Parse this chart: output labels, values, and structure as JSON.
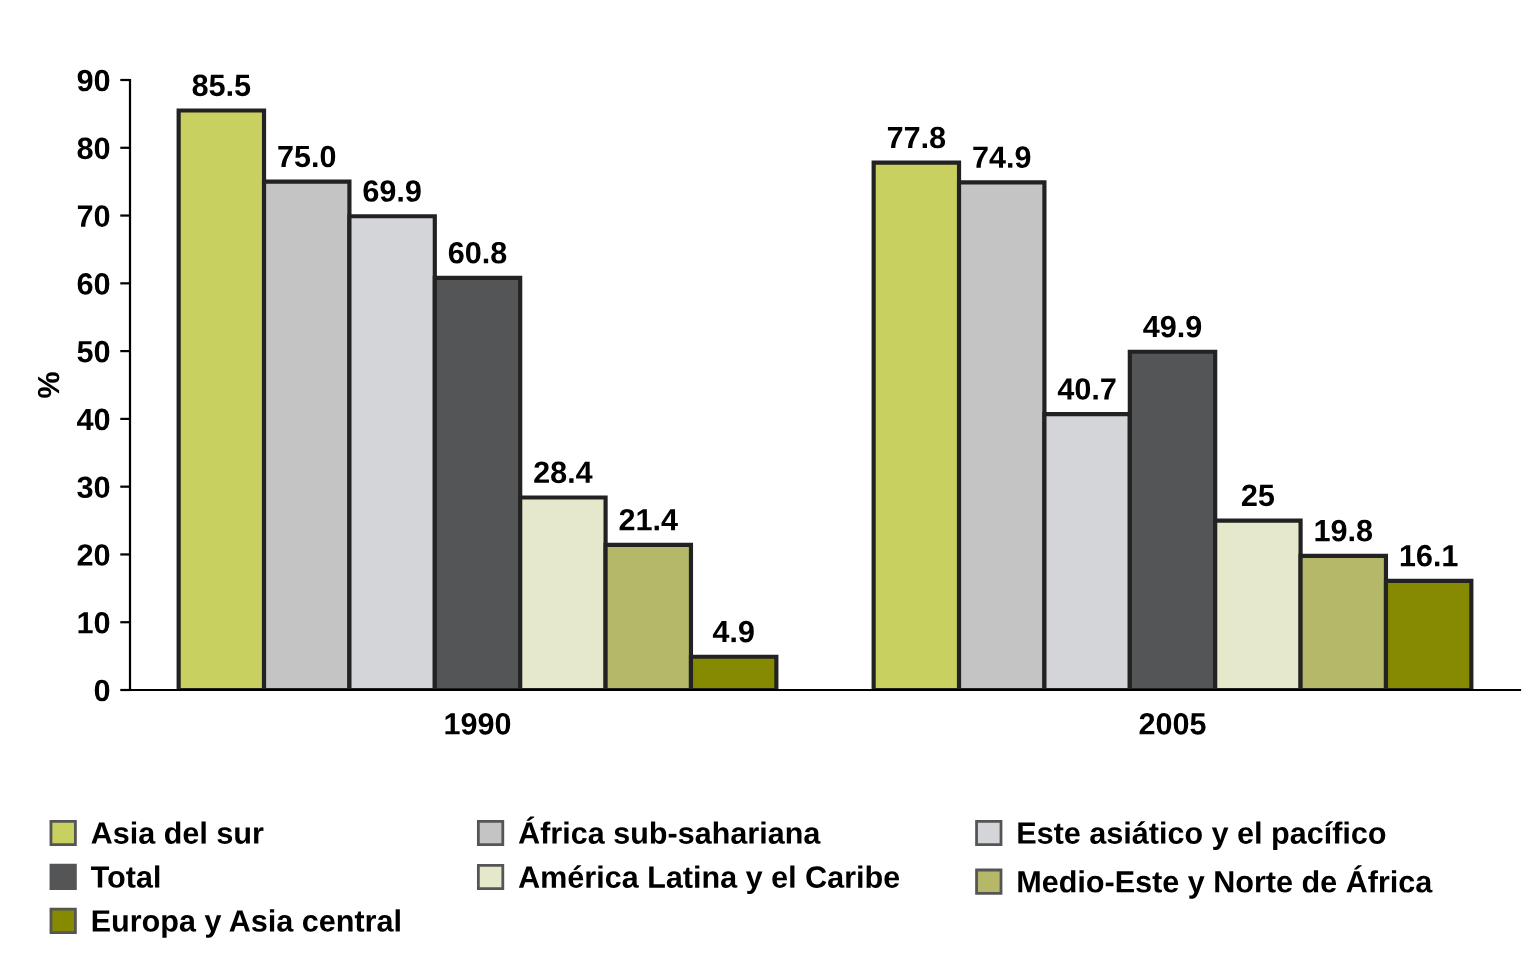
{
  "chart_data": {
    "type": "bar",
    "ylabel": "%",
    "categories": [
      "1990",
      "2005"
    ],
    "series": [
      {
        "name": "Asia del sur",
        "color": "#c8d060",
        "values": [
          85.5,
          77.8
        ],
        "value_labels": [
          "85.5",
          "77.8"
        ]
      },
      {
        "name": "África sub-sahariana",
        "color": "#c4c4c4",
        "values": [
          75.0,
          74.9
        ],
        "value_labels": [
          "75.0",
          "74.9"
        ]
      },
      {
        "name": "Este asiático y el pacífico",
        "color": "#d4d5d8",
        "values": [
          69.9,
          40.7
        ],
        "value_labels": [
          "69.9",
          "40.7"
        ]
      },
      {
        "name": "Total",
        "color": "#545557",
        "values": [
          60.8,
          49.9
        ],
        "value_labels": [
          "60.8",
          "49.9"
        ]
      },
      {
        "name": "América Latina y el Caribe",
        "color": "#e6e8cc",
        "values": [
          28.4,
          25
        ],
        "value_labels": [
          "28.4",
          "25"
        ]
      },
      {
        "name": "Medio-Este y Norte de África",
        "color": "#b4b868",
        "values": [
          21.4,
          19.8
        ],
        "value_labels": [
          "21.4",
          "19.8"
        ]
      },
      {
        "name": "Europa y Asia central",
        "color": "#868a00",
        "values": [
          4.9,
          16.1
        ],
        "value_labels": [
          "4.9",
          "16.1"
        ]
      }
    ],
    "ylim": [
      0,
      90
    ],
    "yticks": [
      0,
      10,
      20,
      30,
      40,
      50,
      60,
      70,
      80,
      90
    ],
    "grid": false,
    "legend": "bottom"
  }
}
